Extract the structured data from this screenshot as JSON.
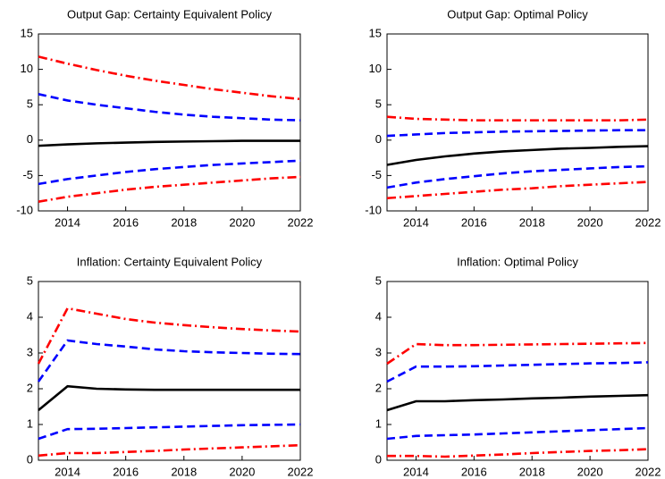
{
  "chart_data": [
    {
      "type": "line",
      "title": "Output Gap: Certainty Equivalent Policy",
      "x": [
        2013,
        2014,
        2015,
        2016,
        2017,
        2018,
        2019,
        2020,
        2021,
        2022
      ],
      "xlim": [
        2013,
        2022
      ],
      "xticks": [
        2014,
        2016,
        2018,
        2020,
        2022
      ],
      "ylim": [
        -10,
        15
      ],
      "yticks": [
        -10,
        -5,
        0,
        5,
        10,
        15
      ],
      "series": [
        {
          "color": "#ff0000",
          "style": "dashdot",
          "values": [
            11.8,
            10.8,
            9.9,
            9.1,
            8.4,
            7.8,
            7.2,
            6.7,
            6.2,
            5.8
          ]
        },
        {
          "color": "#0000ff",
          "style": "dashed",
          "values": [
            6.5,
            5.6,
            5.0,
            4.5,
            4.0,
            3.6,
            3.3,
            3.1,
            2.9,
            2.8
          ]
        },
        {
          "color": "#000000",
          "style": "solid",
          "values": [
            -0.8,
            -0.6,
            -0.45,
            -0.35,
            -0.25,
            -0.2,
            -0.15,
            -0.1,
            -0.1,
            -0.1
          ]
        },
        {
          "color": "#0000ff",
          "style": "dashed",
          "values": [
            -6.2,
            -5.5,
            -5.0,
            -4.5,
            -4.1,
            -3.8,
            -3.5,
            -3.3,
            -3.1,
            -2.9
          ]
        },
        {
          "color": "#ff0000",
          "style": "dashdot",
          "values": [
            -8.7,
            -8.0,
            -7.5,
            -7.0,
            -6.6,
            -6.3,
            -6.0,
            -5.7,
            -5.4,
            -5.2
          ]
        }
      ]
    },
    {
      "type": "line",
      "title": "Output Gap: Optimal Policy",
      "x": [
        2013,
        2014,
        2015,
        2016,
        2017,
        2018,
        2019,
        2020,
        2021,
        2022
      ],
      "xlim": [
        2013,
        2022
      ],
      "xticks": [
        2014,
        2016,
        2018,
        2020,
        2022
      ],
      "ylim": [
        -10,
        15
      ],
      "yticks": [
        -10,
        -5,
        0,
        5,
        10,
        15
      ],
      "series": [
        {
          "color": "#ff0000",
          "style": "dashdot",
          "values": [
            3.3,
            3.0,
            2.9,
            2.8,
            2.8,
            2.8,
            2.8,
            2.8,
            2.8,
            2.9
          ]
        },
        {
          "color": "#0000ff",
          "style": "dashed",
          "values": [
            0.6,
            0.8,
            1.0,
            1.1,
            1.2,
            1.25,
            1.3,
            1.35,
            1.4,
            1.4
          ]
        },
        {
          "color": "#000000",
          "style": "solid",
          "values": [
            -3.5,
            -2.8,
            -2.3,
            -1.9,
            -1.6,
            -1.4,
            -1.2,
            -1.1,
            -0.95,
            -0.85
          ]
        },
        {
          "color": "#0000ff",
          "style": "dashed",
          "values": [
            -6.7,
            -6.0,
            -5.5,
            -5.1,
            -4.7,
            -4.4,
            -4.2,
            -4.0,
            -3.8,
            -3.7
          ]
        },
        {
          "color": "#ff0000",
          "style": "dashdot",
          "values": [
            -8.2,
            -7.9,
            -7.6,
            -7.3,
            -7.0,
            -6.8,
            -6.5,
            -6.3,
            -6.1,
            -5.9
          ]
        }
      ]
    },
    {
      "type": "line",
      "title": "Inflation: Certainty Equivalent Policy",
      "x": [
        2013,
        2014,
        2015,
        2016,
        2017,
        2018,
        2019,
        2020,
        2021,
        2022
      ],
      "xlim": [
        2013,
        2022
      ],
      "xticks": [
        2014,
        2016,
        2018,
        2020,
        2022
      ],
      "ylim": [
        0,
        5
      ],
      "yticks": [
        0,
        1,
        2,
        3,
        4,
        5
      ],
      "series": [
        {
          "color": "#ff0000",
          "style": "dashdot",
          "values": [
            2.7,
            4.25,
            4.1,
            3.95,
            3.85,
            3.78,
            3.72,
            3.67,
            3.63,
            3.6
          ]
        },
        {
          "color": "#0000ff",
          "style": "dashed",
          "values": [
            2.2,
            3.35,
            3.25,
            3.18,
            3.1,
            3.05,
            3.02,
            3.0,
            2.98,
            2.97
          ]
        },
        {
          "color": "#000000",
          "style": "solid",
          "values": [
            1.4,
            2.07,
            2.0,
            1.98,
            1.97,
            1.97,
            1.97,
            1.97,
            1.97,
            1.97
          ]
        },
        {
          "color": "#0000ff",
          "style": "dashed",
          "values": [
            0.6,
            0.87,
            0.88,
            0.9,
            0.92,
            0.94,
            0.96,
            0.98,
            0.99,
            1.0
          ]
        },
        {
          "color": "#ff0000",
          "style": "dashdot",
          "values": [
            0.13,
            0.2,
            0.2,
            0.23,
            0.26,
            0.3,
            0.33,
            0.36,
            0.39,
            0.42
          ]
        }
      ]
    },
    {
      "type": "line",
      "title": "Inflation: Optimal Policy",
      "x": [
        2013,
        2014,
        2015,
        2016,
        2017,
        2018,
        2019,
        2020,
        2021,
        2022
      ],
      "xlim": [
        2013,
        2022
      ],
      "xticks": [
        2014,
        2016,
        2018,
        2020,
        2022
      ],
      "ylim": [
        0,
        5
      ],
      "yticks": [
        0,
        1,
        2,
        3,
        4,
        5
      ],
      "series": [
        {
          "color": "#ff0000",
          "style": "dashdot",
          "values": [
            2.7,
            3.25,
            3.22,
            3.22,
            3.23,
            3.24,
            3.25,
            3.26,
            3.27,
            3.28
          ]
        },
        {
          "color": "#0000ff",
          "style": "dashed",
          "values": [
            2.2,
            2.62,
            2.62,
            2.63,
            2.65,
            2.67,
            2.69,
            2.71,
            2.72,
            2.74
          ]
        },
        {
          "color": "#000000",
          "style": "solid",
          "values": [
            1.4,
            1.65,
            1.65,
            1.68,
            1.7,
            1.73,
            1.75,
            1.78,
            1.8,
            1.82
          ]
        },
        {
          "color": "#0000ff",
          "style": "dashed",
          "values": [
            0.6,
            0.68,
            0.7,
            0.72,
            0.75,
            0.78,
            0.81,
            0.84,
            0.87,
            0.9
          ]
        },
        {
          "color": "#ff0000",
          "style": "dashdot",
          "values": [
            0.12,
            0.12,
            0.1,
            0.13,
            0.16,
            0.2,
            0.23,
            0.26,
            0.28,
            0.31
          ]
        }
      ]
    }
  ]
}
